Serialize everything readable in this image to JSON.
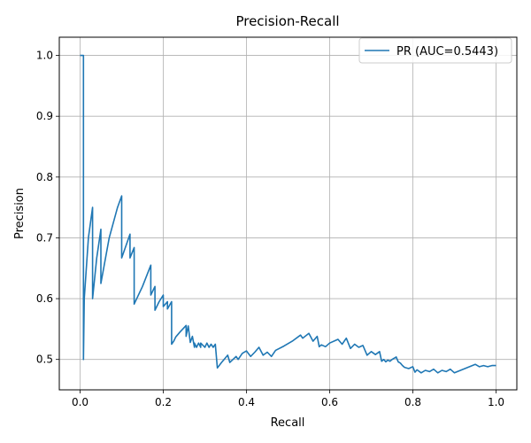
{
  "chart_data": {
    "type": "line",
    "title": "Precision-Recall",
    "xlabel": "Recall",
    "ylabel": "Precision",
    "xlim": [
      -0.05,
      1.05
    ],
    "ylim": [
      0.45,
      1.03
    ],
    "grid": true,
    "legend_position": "top-right",
    "x_ticks": [
      0.0,
      0.2,
      0.4,
      0.6,
      0.8,
      1.0
    ],
    "x_tick_labels": [
      "0.0",
      "0.2",
      "0.4",
      "0.6",
      "0.8",
      "1.0"
    ],
    "y_ticks": [
      0.5,
      0.6,
      0.7,
      0.8,
      0.9,
      1.0
    ],
    "y_tick_labels": [
      "0.5",
      "0.6",
      "0.7",
      "0.8",
      "0.9",
      "1.0"
    ],
    "series": [
      {
        "name": "PR (AUC=0.5443)",
        "color": "#1f77b4",
        "x": [
          0.0,
          0.008,
          0.008,
          0.01,
          0.02,
          0.03,
          0.03,
          0.04,
          0.05,
          0.05,
          0.07,
          0.09,
          0.1,
          0.1,
          0.12,
          0.12,
          0.13,
          0.13,
          0.15,
          0.17,
          0.17,
          0.18,
          0.18,
          0.19,
          0.2,
          0.2,
          0.21,
          0.21,
          0.22,
          0.22,
          0.225,
          0.23,
          0.24,
          0.255,
          0.255,
          0.26,
          0.265,
          0.27,
          0.275,
          0.275,
          0.28,
          0.285,
          0.29,
          0.29,
          0.3,
          0.305,
          0.31,
          0.315,
          0.32,
          0.325,
          0.33,
          0.34,
          0.355,
          0.36,
          0.375,
          0.38,
          0.39,
          0.4,
          0.41,
          0.42,
          0.43,
          0.44,
          0.45,
          0.46,
          0.47,
          0.49,
          0.51,
          0.53,
          0.535,
          0.55,
          0.56,
          0.57,
          0.575,
          0.58,
          0.59,
          0.6,
          0.62,
          0.63,
          0.64,
          0.65,
          0.66,
          0.67,
          0.68,
          0.69,
          0.7,
          0.71,
          0.72,
          0.725,
          0.73,
          0.735,
          0.74,
          0.745,
          0.75,
          0.76,
          0.765,
          0.77,
          0.775,
          0.78,
          0.79,
          0.8,
          0.805,
          0.81,
          0.82,
          0.83,
          0.84,
          0.85,
          0.86,
          0.87,
          0.88,
          0.89,
          0.9,
          0.95,
          0.96,
          0.97,
          0.98,
          0.99,
          1.0
        ],
        "y": [
          1.0,
          1.0,
          0.5,
          0.6,
          0.7,
          0.75,
          0.6,
          0.667,
          0.714,
          0.625,
          0.7,
          0.75,
          0.769,
          0.667,
          0.706,
          0.667,
          0.684,
          0.591,
          0.62,
          0.655,
          0.606,
          0.62,
          0.581,
          0.595,
          0.606,
          0.587,
          0.595,
          0.583,
          0.595,
          0.525,
          0.53,
          0.537,
          0.545,
          0.556,
          0.538,
          0.555,
          0.528,
          0.538,
          0.52,
          0.527,
          0.52,
          0.527,
          0.52,
          0.527,
          0.52,
          0.527,
          0.52,
          0.525,
          0.52,
          0.525,
          0.486,
          0.495,
          0.507,
          0.495,
          0.505,
          0.5,
          0.51,
          0.514,
          0.505,
          0.512,
          0.52,
          0.507,
          0.512,
          0.505,
          0.515,
          0.522,
          0.53,
          0.54,
          0.535,
          0.543,
          0.53,
          0.538,
          0.521,
          0.524,
          0.521,
          0.527,
          0.533,
          0.525,
          0.535,
          0.518,
          0.525,
          0.52,
          0.523,
          0.507,
          0.513,
          0.508,
          0.513,
          0.497,
          0.5,
          0.496,
          0.499,
          0.497,
          0.5,
          0.504,
          0.496,
          0.494,
          0.49,
          0.487,
          0.485,
          0.488,
          0.479,
          0.483,
          0.478,
          0.482,
          0.48,
          0.484,
          0.478,
          0.482,
          0.48,
          0.484,
          0.478,
          0.492,
          0.488,
          0.49,
          0.488,
          0.49,
          0.49
        ]
      }
    ]
  }
}
